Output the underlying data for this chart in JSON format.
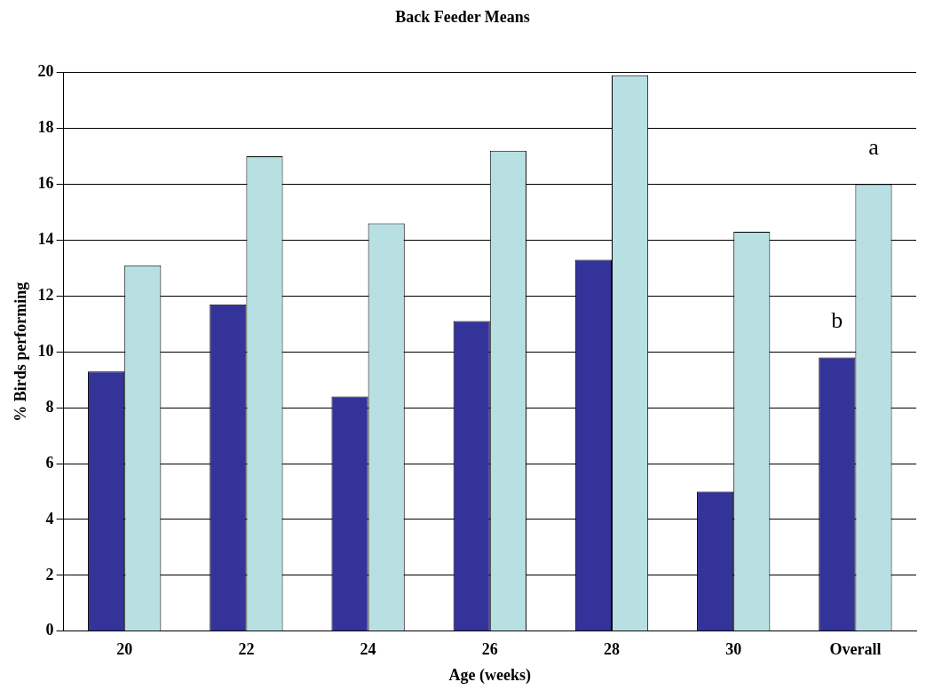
{
  "chart_data": {
    "type": "bar",
    "title": "Back Feeder Means",
    "xlabel": "Age (weeks)",
    "ylabel": "% Birds performing",
    "categories": [
      "20",
      "22",
      "24",
      "26",
      "28",
      "30",
      "Overall"
    ],
    "series": [
      {
        "color": "#333399",
        "values": [
          9.3,
          11.7,
          8.4,
          11.1,
          13.3,
          5.0,
          9.8
        ]
      },
      {
        "color": "#b8e0e3",
        "values": [
          13.1,
          17.0,
          14.6,
          17.2,
          19.9,
          14.3,
          16.0
        ]
      }
    ],
    "ylim": [
      0,
      20
    ],
    "yticks": [
      0,
      2,
      4,
      6,
      8,
      10,
      12,
      14,
      16,
      18,
      20
    ],
    "grid": "y",
    "legend": false,
    "annotations": [
      {
        "text": "a",
        "x": "Overall",
        "y": 16.0
      },
      {
        "text": "b",
        "x": "Overall",
        "y": 9.8
      }
    ]
  }
}
